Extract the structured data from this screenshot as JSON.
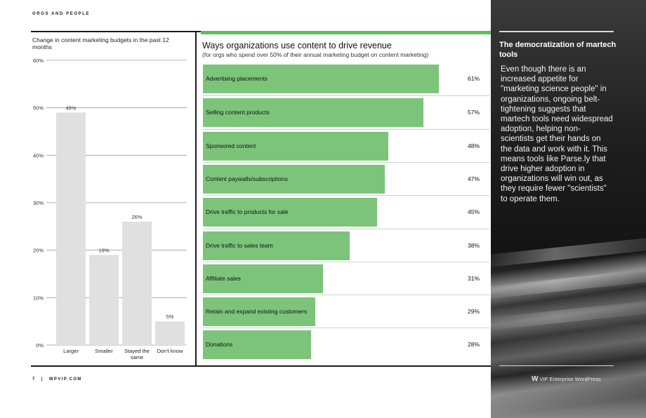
{
  "header": {
    "section_label": "ORGS AND PEOPLE"
  },
  "left_chart": {
    "title": "Change in content marketing budgets in the past 12 months"
  },
  "right_chart": {
    "title": "Ways organizations use content to drive revenue",
    "subtitle": "(for orgs who spend over 50% of their annual marketing budget on content marketing)"
  },
  "sidebar": {
    "heading": "The democratization of martech tools",
    "body": "Even though there is an increased appetite for \"marketing science people\" in organizations, ongoing belt-tightening suggests that martech tools need widespread adoption, helping non-scientists get their hands on the data and work with it. This means tools like Parse.ly that drive higher adoption in organizations will win out, as they require fewer \"scientists\" to operate them.",
    "brand_logo": "W",
    "brand_text": "VIP  Enterprise WordPress"
  },
  "footer": {
    "page_number": "7",
    "separator": "|",
    "site": "WPVIP.COM"
  },
  "colors": {
    "green_bar": "#7cc47a",
    "gray_bar": "#e0e0e0",
    "green_rule": "#5cbf5c"
  },
  "chart_data": [
    {
      "type": "bar",
      "title": "Change in content marketing budgets in the past 12 months",
      "categories": [
        "Larger",
        "Smaller",
        "Stayed the same",
        "Don't know"
      ],
      "category_lines": [
        [
          "Larger"
        ],
        [
          "Smaller"
        ],
        [
          "Stayed the",
          "same"
        ],
        [
          "Don't know"
        ]
      ],
      "values": [
        49,
        19,
        26,
        5
      ],
      "value_labels": [
        "49%",
        "19%",
        "26%",
        "5%"
      ],
      "ylim": [
        0,
        60
      ],
      "yticks": [
        0,
        10,
        20,
        30,
        40,
        50,
        60
      ],
      "ytick_labels": [
        "0%",
        "10%",
        "20%",
        "30%",
        "40%",
        "50%",
        "60%"
      ],
      "grid": true
    },
    {
      "type": "bar",
      "orientation": "horizontal",
      "title": "Ways organizations use content to drive revenue",
      "subtitle": "(for orgs who spend over 50% of their annual marketing budget on content marketing)",
      "categories": [
        "Advertising placements",
        "Selling content products",
        "Sponsored content",
        "Content paywalls/subscriptions",
        "Drive traffic to products for sale",
        "Drive traffic to sales team",
        "Affiliate sales",
        "Retain and expand existing customers",
        "Donations"
      ],
      "values": [
        61,
        57,
        48,
        47,
        45,
        38,
        31,
        29,
        28
      ],
      "value_labels": [
        "61%",
        "57%",
        "48%",
        "47%",
        "45%",
        "38%",
        "31%",
        "29%",
        "28%"
      ]
    }
  ]
}
